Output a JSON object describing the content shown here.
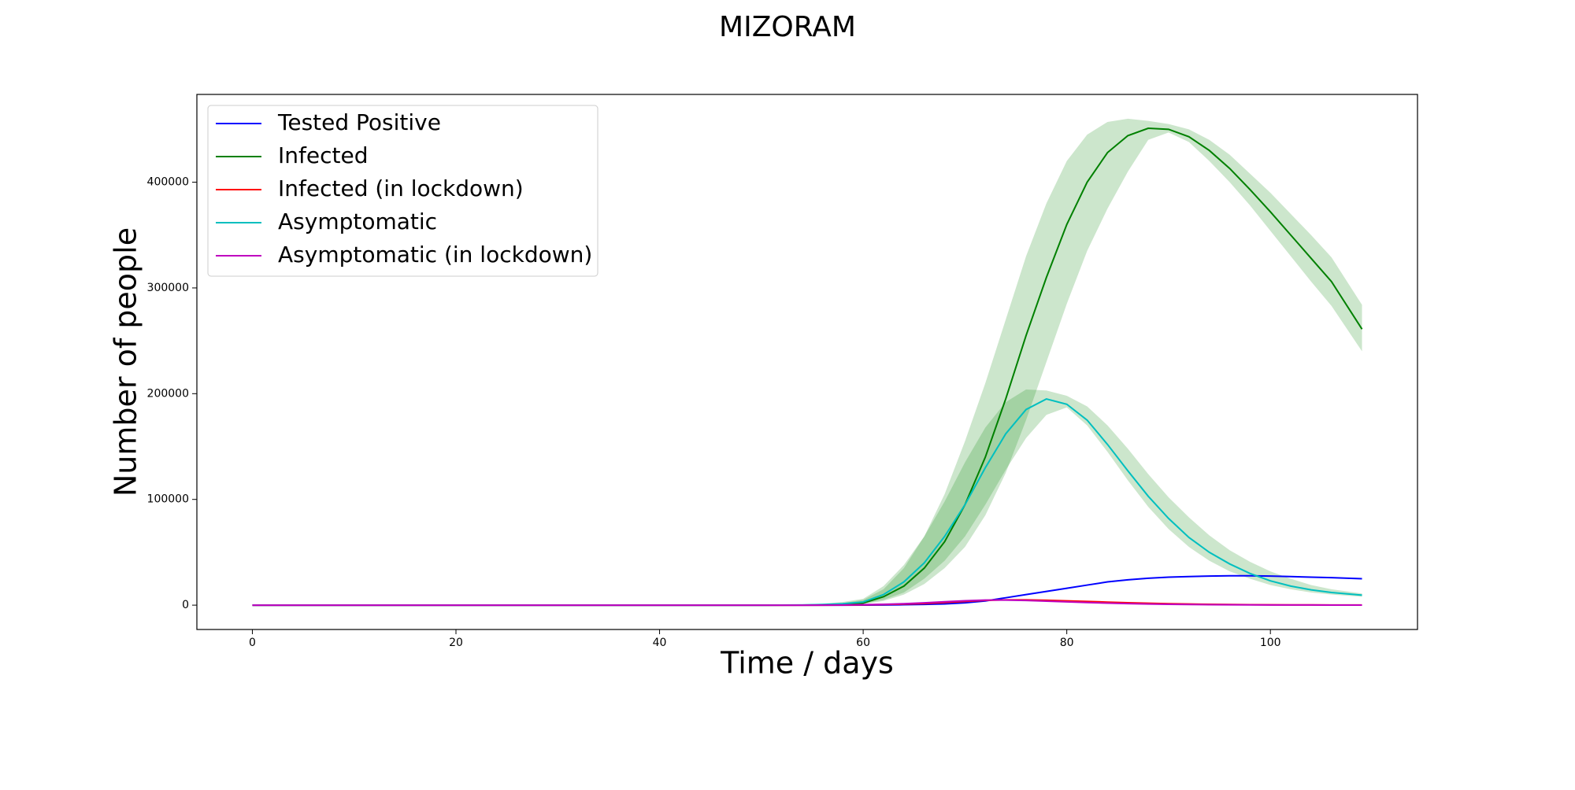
{
  "chart_data": {
    "type": "line",
    "title": "MIZORAM",
    "x_label": "Time / days",
    "y_label": "Number of people",
    "xlim": [
      -5.45,
      114.45
    ],
    "ylim": [
      -23000,
      483000
    ],
    "xticks": [
      0,
      20,
      40,
      60,
      80,
      100
    ],
    "yticks": [
      0,
      100000,
      200000,
      300000,
      400000
    ],
    "grid": false,
    "legend": "upper left",
    "band_color": "#008000",
    "x": [
      0,
      10,
      20,
      30,
      40,
      50,
      54,
      56,
      58,
      60,
      62,
      64,
      66,
      68,
      70,
      72,
      74,
      76,
      78,
      80,
      82,
      84,
      86,
      88,
      90,
      92,
      94,
      96,
      98,
      100,
      102,
      104,
      106,
      109
    ],
    "series": [
      {
        "name": "Tested Positive",
        "color": "#0000ff",
        "values": [
          0,
          0,
          0,
          0,
          0,
          0,
          0,
          0,
          0,
          100,
          200,
          400,
          700,
          1200,
          2200,
          4000,
          7000,
          10000,
          13000,
          16000,
          19000,
          22000,
          24000,
          25500,
          26500,
          27000,
          27500,
          27800,
          27800,
          27500,
          27000,
          26500,
          26000,
          25000
        ]
      },
      {
        "name": "Infected",
        "color": "#008000",
        "values": [
          0,
          0,
          0,
          0,
          0,
          0,
          100,
          300,
          800,
          2000,
          8000,
          18000,
          35000,
          60000,
          95000,
          140000,
          195000,
          255000,
          310000,
          360000,
          400000,
          428000,
          444000,
          451000,
          450000,
          443000,
          430000,
          413000,
          393000,
          372000,
          350000,
          328000,
          306000,
          261000
        ],
        "upper": [
          0,
          0,
          0,
          0,
          0,
          0,
          300,
          800,
          2000,
          5000,
          15000,
          35000,
          65000,
          105000,
          155000,
          210000,
          270000,
          330000,
          380000,
          420000,
          445000,
          457000,
          460000,
          458000,
          455000,
          450000,
          440000,
          426000,
          408000,
          390000,
          370000,
          350000,
          329000,
          284000
        ],
        "lower": [
          0,
          0,
          0,
          0,
          0,
          0,
          0,
          100,
          300,
          1000,
          4000,
          10000,
          20000,
          35000,
          55000,
          85000,
          125000,
          175000,
          230000,
          285000,
          335000,
          375000,
          410000,
          440000,
          447000,
          438000,
          420000,
          400000,
          378000,
          354000,
          330000,
          306000,
          283000,
          240000
        ]
      },
      {
        "name": "Infected (in lockdown)",
        "color": "#ff0000",
        "values": [
          0,
          0,
          0,
          0,
          0,
          0,
          0,
          0,
          100,
          300,
          600,
          1000,
          1600,
          2500,
          3500,
          4500,
          5000,
          5000,
          4600,
          4100,
          3500,
          2900,
          2300,
          1800,
          1400,
          1100,
          800,
          600,
          450,
          350,
          280,
          220,
          180,
          130
        ]
      },
      {
        "name": "Asymptomatic",
        "color": "#00bfbf",
        "values": [
          0,
          0,
          0,
          0,
          0,
          0,
          200,
          600,
          1400,
          3000,
          10000,
          22000,
          40000,
          65000,
          95000,
          130000,
          162000,
          185000,
          195000,
          190000,
          175000,
          152000,
          127000,
          103000,
          82000,
          64000,
          50000,
          39000,
          30000,
          23000,
          18000,
          14500,
          12000,
          9500
        ],
        "upper": [
          0,
          0,
          0,
          0,
          0,
          0,
          500,
          1400,
          3000,
          6000,
          18000,
          38000,
          65000,
          98000,
          135000,
          168000,
          192000,
          204000,
          203000,
          198000,
          188000,
          170000,
          148000,
          124000,
          102000,
          83000,
          66000,
          52000,
          41000,
          32000,
          25000,
          19000,
          15000,
          11000
        ],
        "lower": [
          0,
          0,
          0,
          0,
          0,
          0,
          50,
          200,
          600,
          1500,
          5000,
          12000,
          25000,
          42000,
          65000,
          95000,
          128000,
          158000,
          180000,
          187000,
          170000,
          145000,
          118000,
          93000,
          72000,
          55000,
          42000,
          32000,
          25000,
          19000,
          15000,
          12000,
          10000,
          8000
        ]
      },
      {
        "name": "Asymptomatic (in lockdown)",
        "color": "#bf00bf",
        "values": [
          0,
          0,
          0,
          0,
          0,
          0,
          0,
          100,
          200,
          400,
          800,
          1400,
          2200,
          3200,
          4200,
          4800,
          4800,
          4400,
          3800,
          3100,
          2500,
          1900,
          1500,
          1100,
          800,
          600,
          450,
          350,
          270,
          200,
          160,
          130,
          100,
          80
        ]
      }
    ]
  }
}
